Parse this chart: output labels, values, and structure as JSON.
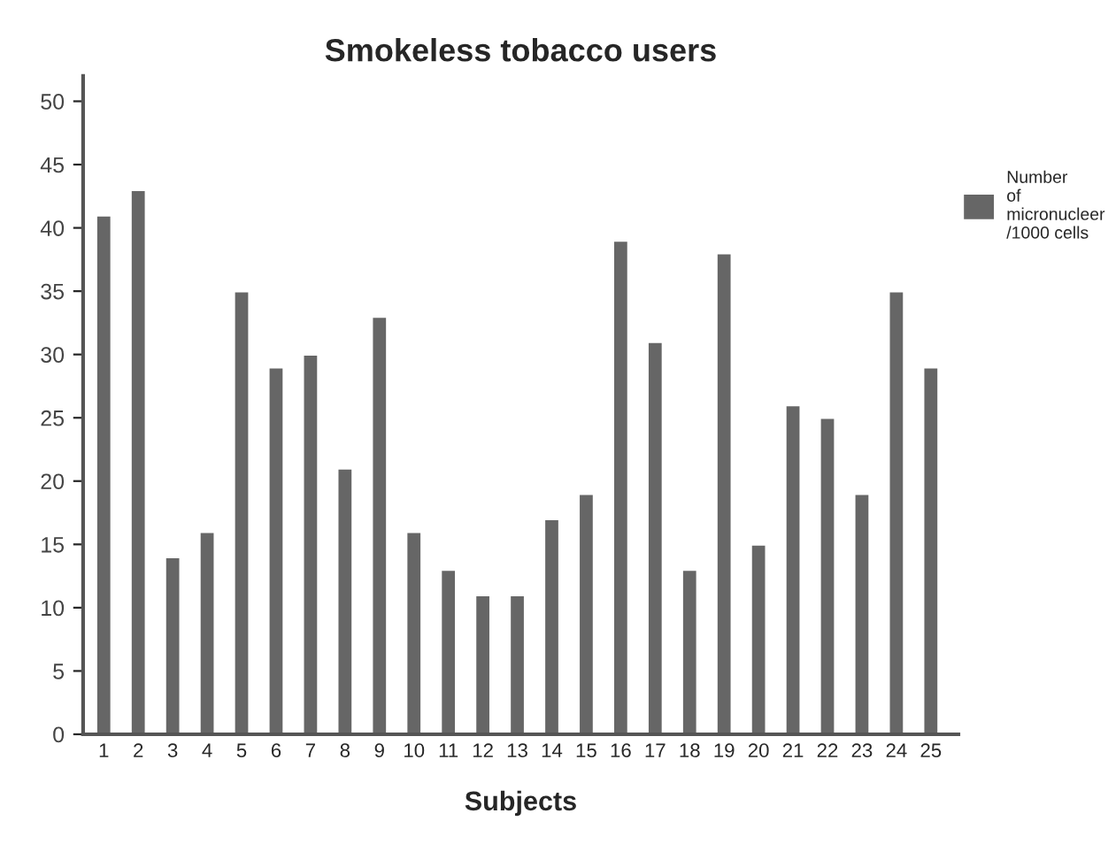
{
  "chart_data": {
    "type": "bar",
    "title": "Smokeless tobacco users",
    "xlabel": "Subjects",
    "categories": [
      "1",
      "2",
      "3",
      "4",
      "5",
      "6",
      "7",
      "8",
      "9",
      "10",
      "11",
      "12",
      "13",
      "14",
      "15",
      "16",
      "17",
      "18",
      "19",
      "20",
      "21",
      "22",
      "23",
      "24",
      "25"
    ],
    "series": [
      {
        "name": "Number\nof\nmicronucleer\n/1000 cells",
        "color": "#666666",
        "values": [
          41,
          43,
          14,
          16,
          35,
          29,
          30,
          21,
          33,
          16,
          13,
          11,
          11,
          17,
          19,
          39,
          31,
          13,
          38,
          15,
          26,
          25,
          19,
          35,
          29
        ]
      }
    ],
    "ylim": [
      0,
      52
    ],
    "yticks": [
      0,
      5,
      10,
      15,
      20,
      25,
      30,
      35,
      40,
      45,
      50
    ],
    "grid": false,
    "legend": "top right"
  }
}
